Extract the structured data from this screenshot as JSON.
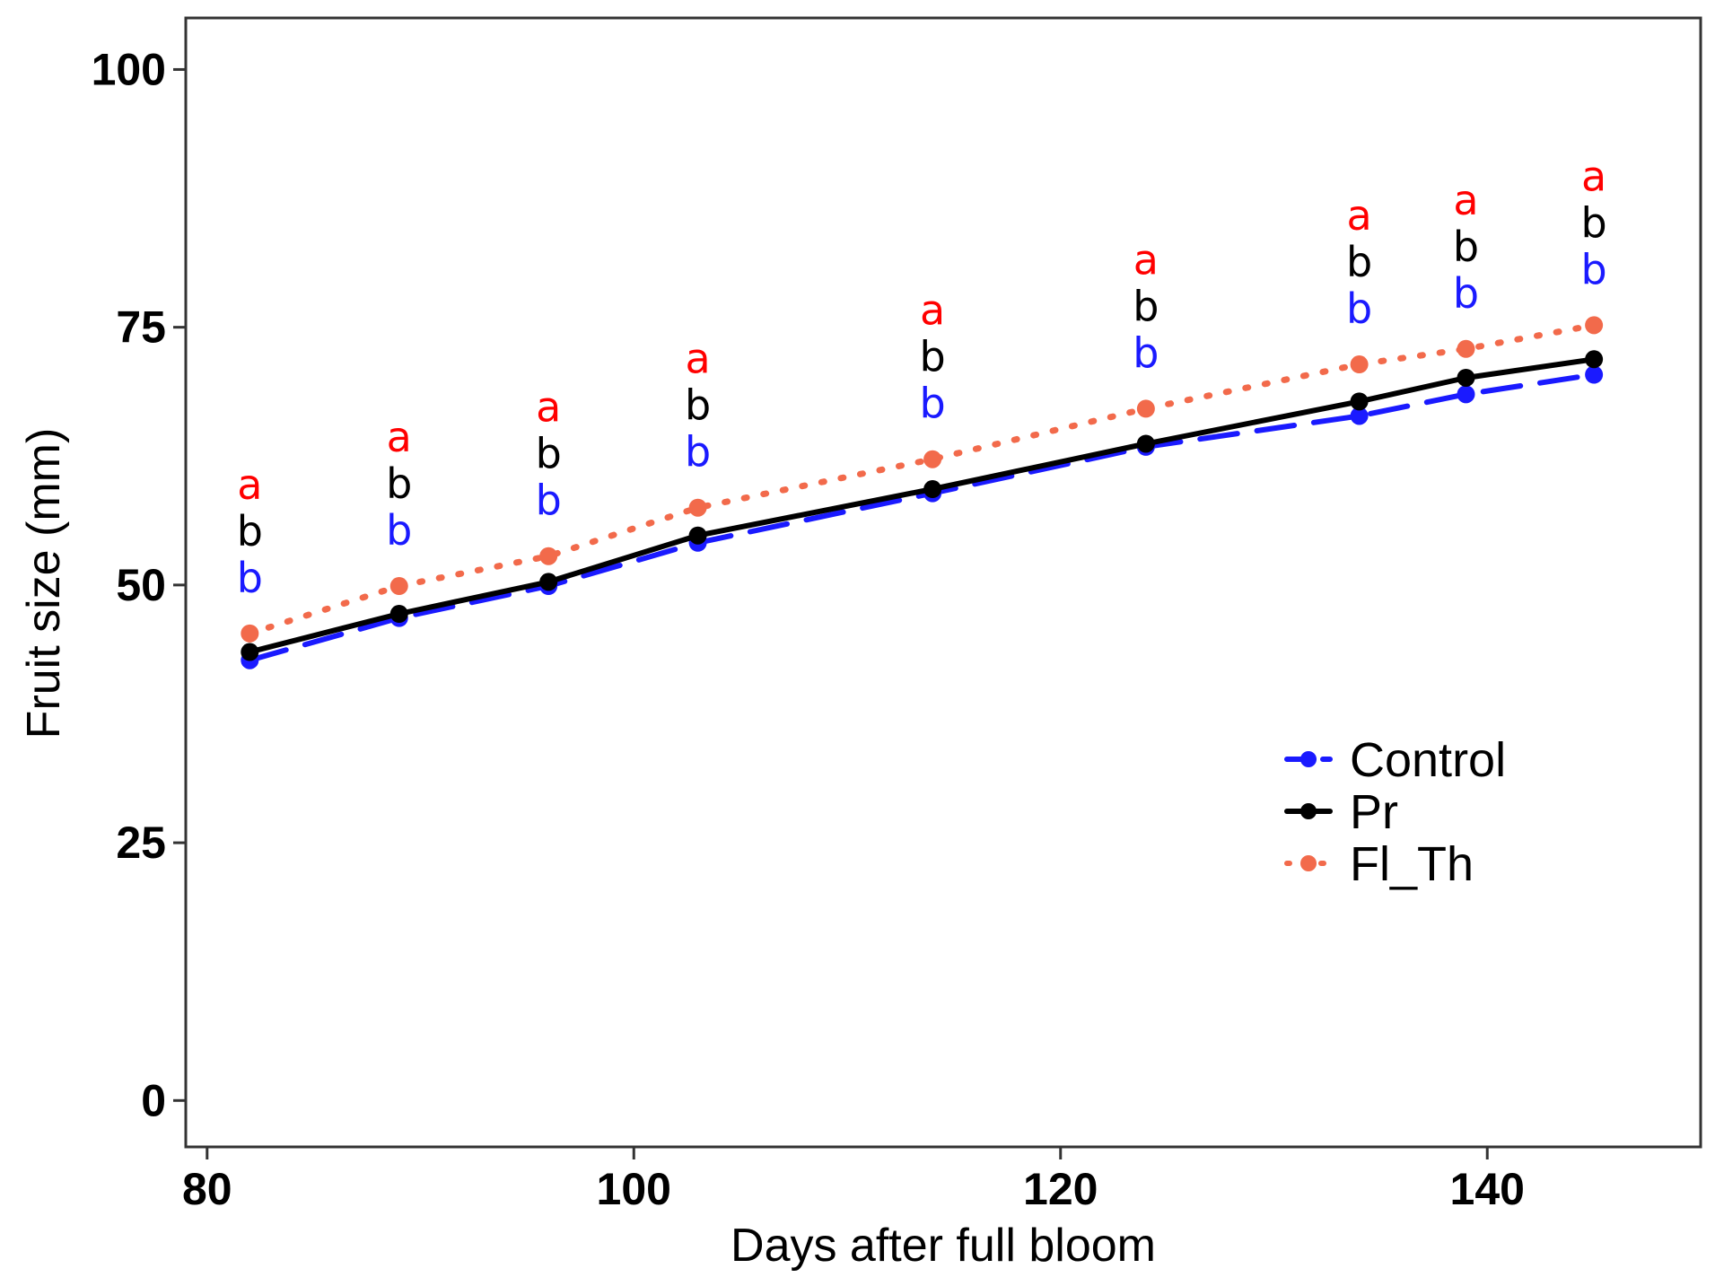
{
  "chart_data": {
    "type": "line",
    "title": "",
    "xlabel": "Days after full bloom",
    "ylabel": "Fruit size (mm)",
    "xlim": [
      79,
      150
    ],
    "ylim": [
      -4.5,
      105
    ],
    "x_ticks": [
      80,
      100,
      120,
      140
    ],
    "y_ticks": [
      0,
      25,
      50,
      75,
      100
    ],
    "grid": false,
    "legend_position": "right",
    "x": [
      82,
      89,
      96,
      103,
      114,
      124,
      134,
      139,
      145
    ],
    "series": [
      {
        "name": "Control",
        "color": "#1a1aff",
        "line_style": "dashed",
        "values": [
          42.7,
          46.8,
          49.9,
          54.1,
          58.9,
          63.4,
          66.4,
          68.5,
          70.4
        ]
      },
      {
        "name": "Pr",
        "color": "#000000",
        "line_style": "solid",
        "values": [
          43.5,
          47.2,
          50.3,
          54.8,
          59.3,
          63.7,
          67.8,
          70.1,
          71.9
        ]
      },
      {
        "name": "Fl_Th",
        "color": "#f26a4b",
        "line_style": "dotted",
        "values": [
          45.3,
          49.9,
          52.8,
          57.5,
          62.2,
          67.1,
          71.4,
          72.9,
          75.2
        ]
      }
    ],
    "annotations": {
      "letters_top": [
        "a",
        "a",
        "a",
        "a",
        "a",
        "a",
        "a",
        "a",
        "a"
      ],
      "letters_middle": [
        "b",
        "b",
        "b",
        "b",
        "b",
        "b",
        "b",
        "b",
        "b"
      ],
      "letters_bottom": [
        "b",
        "b",
        "b",
        "b",
        "b",
        "b",
        "b",
        "b",
        "b"
      ],
      "color_top": "#ff0000",
      "color_middle": "#000000",
      "color_bottom": "#1a1aff"
    }
  }
}
